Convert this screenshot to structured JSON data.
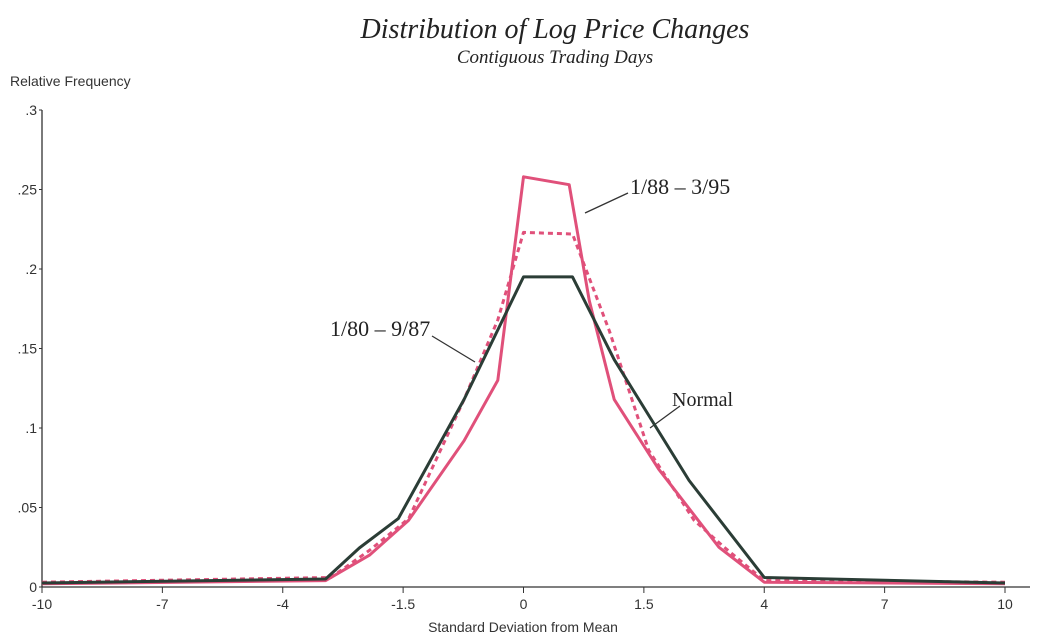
{
  "chart_data": {
    "type": "line",
    "title": "Distribution of Log Price Changes",
    "subtitle": "Contiguous Trading Days",
    "y_label": "Relative Frequency",
    "x_label": "Standard Deviation from Mean",
    "x_scale": "piecewise-ticks",
    "xlim": [
      -10,
      10
    ],
    "xticks": [
      -10,
      -7,
      -4,
      -1.5,
      0,
      1.5,
      4,
      7,
      10
    ],
    "ylim": [
      0,
      0.3
    ],
    "yticks": [
      0,
      {
        "value": 0.05,
        "label": ".05"
      },
      {
        "value": 0.1,
        "label": ".1"
      },
      {
        "value": 0.15,
        "label": ".15"
      },
      {
        "value": 0.2,
        "label": ".2"
      },
      {
        "value": 0.25,
        "label": ".25"
      },
      {
        "value": 0.3,
        "label": ".3"
      }
    ],
    "grid": false,
    "series": [
      {
        "name": "Normal",
        "color": "#2b3d36",
        "style": "solid",
        "x": [
          -10,
          -3.11,
          -2.41,
          -1.6,
          -0.74,
          0,
          0.61,
          1.13,
          2.44,
          4,
          10
        ],
        "values": [
          0.0025,
          0.005,
          0.0245,
          0.043,
          0.118,
          0.195,
          0.195,
          0.143,
          0.067,
          0.006,
          0.0025
        ]
      },
      {
        "name": "1/88 – 3/95",
        "color": "#e0507a",
        "style": "solid",
        "x": [
          -10,
          -3.11,
          -2.2,
          -1.43,
          -0.74,
          -0.32,
          0,
          0.57,
          0.82,
          1.13,
          1.81,
          3.06,
          4,
          10
        ],
        "values": [
          0.002,
          0.004,
          0.02,
          0.042,
          0.092,
          0.13,
          0.258,
          0.253,
          0.18,
          0.118,
          0.074,
          0.025,
          0.003,
          0.002
        ]
      },
      {
        "name": "1/80 – 9/87",
        "color": "#e0507a",
        "style": "dotted",
        "x": [
          -10,
          -3.0,
          -2.2,
          -1.43,
          -0.74,
          -0.32,
          0,
          0.61,
          1.07,
          1.6,
          2.54,
          3.17,
          4,
          10
        ],
        "values": [
          0.003,
          0.006,
          0.023,
          0.043,
          0.118,
          0.168,
          0.223,
          0.222,
          0.161,
          0.086,
          0.042,
          0.025,
          0.004,
          0.003
        ]
      }
    ]
  }
}
